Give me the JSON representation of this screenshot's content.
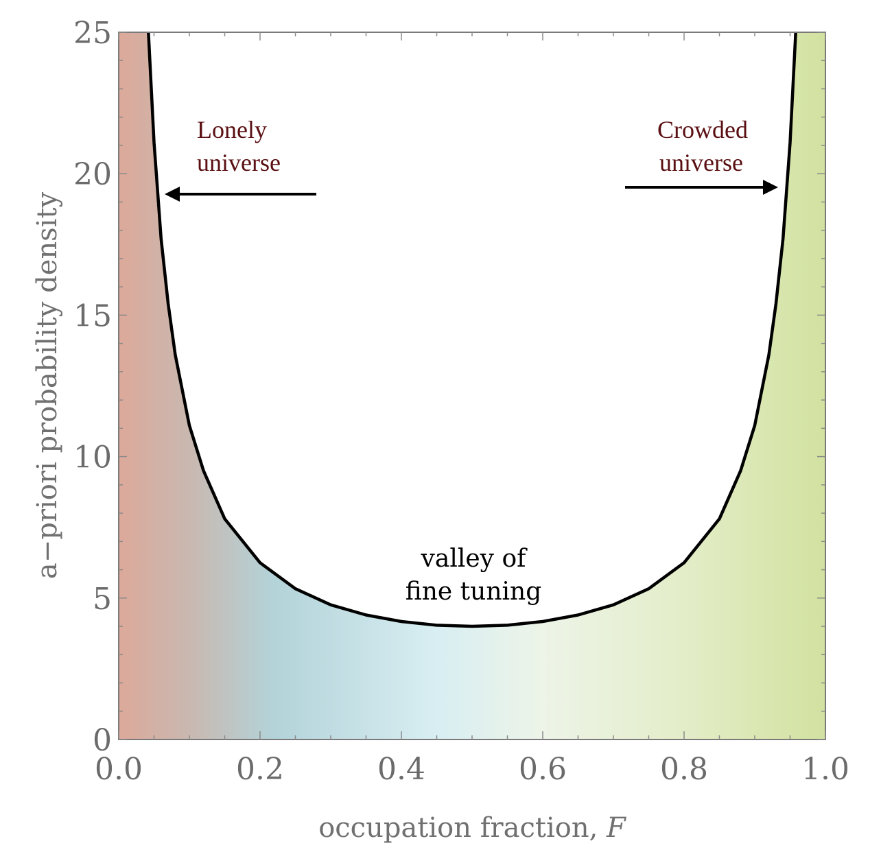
{
  "chart_data": {
    "type": "line",
    "xlabel": "occupation fraction, ",
    "xlabel_var": "F",
    "ylabel": "a−priori probability density",
    "xlim": [
      0.0,
      1.0
    ],
    "ylim": [
      0,
      25
    ],
    "x_ticks": [
      "0.0",
      "0.2",
      "0.4",
      "0.6",
      "0.8",
      "1.0"
    ],
    "y_ticks": [
      "0",
      "5",
      "10",
      "15",
      "20",
      "25"
    ],
    "grid": false,
    "series": [
      {
        "x": [
          0.042,
          0.05,
          0.06,
          0.07,
          0.08,
          0.1,
          0.12,
          0.15,
          0.2,
          0.25,
          0.3,
          0.35,
          0.4,
          0.45,
          0.5,
          0.55,
          0.6,
          0.65,
          0.7,
          0.75,
          0.8,
          0.85,
          0.88,
          0.9,
          0.92,
          0.93,
          0.94,
          0.95,
          0.958
        ],
        "y": [
          25.0,
          21.1,
          17.7,
          15.4,
          13.6,
          11.1,
          9.5,
          7.8,
          6.25,
          5.33,
          4.76,
          4.4,
          4.17,
          4.04,
          4.0,
          4.04,
          4.17,
          4.4,
          4.76,
          5.33,
          6.25,
          7.8,
          9.5,
          11.1,
          13.6,
          15.4,
          17.7,
          21.1,
          25.0
        ],
        "color": "#000000"
      }
    ],
    "background_gradient": [
      "#dca99a",
      "#b0d2d8",
      "#d4e3f0",
      "#e6f1e0",
      "#d2e3a0"
    ],
    "annotations": [
      {
        "lines": [
          "Lonely",
          "universe"
        ],
        "color": "#5a0f12"
      },
      {
        "lines": [
          "Crowded",
          "universe"
        ],
        "color": "#5a0f12"
      },
      {
        "lines": [
          "valley of",
          "fine tuning"
        ],
        "color": "#000000"
      }
    ]
  }
}
